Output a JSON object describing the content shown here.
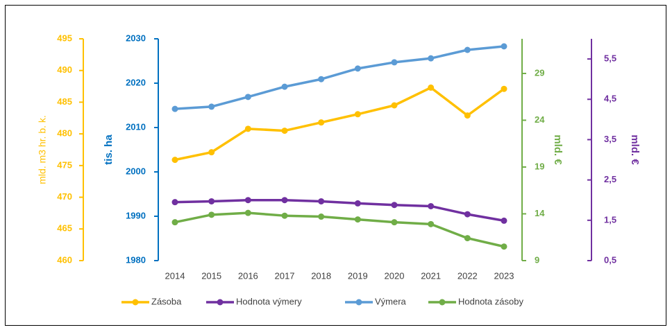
{
  "chart_data": {
    "type": "line",
    "categories": [
      "2014",
      "2015",
      "2016",
      "2017",
      "2018",
      "2019",
      "2020",
      "2021",
      "2022",
      "2023"
    ],
    "axes": [
      {
        "title": "mld. m3 hr. b. k.",
        "color": "#ffc000",
        "lim": [
          460,
          495
        ],
        "ticks": [
          460,
          465,
          470,
          475,
          480,
          485,
          490,
          495
        ]
      },
      {
        "title": "tis. ha",
        "color": "#0070c0",
        "lim": [
          1980,
          2030
        ],
        "ticks": [
          1980,
          1990,
          2000,
          2010,
          2020,
          2030
        ]
      },
      {
        "title": "mld. €",
        "color": "#70ad47",
        "lim": [
          9,
          32.7
        ],
        "ticks": [
          9,
          14,
          19,
          24,
          29
        ]
      },
      {
        "title": "mld. €",
        "color": "#7030a0",
        "lim": [
          0.5,
          6
        ],
        "ticks": [
          {
            "value": 0.5,
            "label": "0,5"
          },
          {
            "value": 1.5,
            "label": "1,5"
          },
          {
            "value": 2.5,
            "label": "2,5"
          },
          {
            "value": 3.5,
            "label": "3,5"
          },
          {
            "value": 4.5,
            "label": "4,5"
          },
          {
            "value": 5.5,
            "label": "5,5"
          }
        ]
      }
    ],
    "series": [
      {
        "name": "Zásoba",
        "color": "#ffc000",
        "axis": 0,
        "values": [
          475.9,
          477.1,
          480.8,
          480.5,
          481.8,
          483.1,
          484.5,
          487.3,
          482.9,
          487.1
        ]
      },
      {
        "name": "Hodnota výmery",
        "color": "#7030a0",
        "axis": 3,
        "values": [
          1.95,
          1.97,
          2.0,
          2.0,
          1.97,
          1.92,
          1.88,
          1.85,
          1.65,
          1.49
        ]
      },
      {
        "name": "Výmera",
        "color": "#5b9bd5",
        "axis": 1,
        "values": [
          2014.2,
          2014.7,
          2016.9,
          2019.2,
          2020.9,
          2023.3,
          2024.7,
          2025.6,
          2027.5,
          2028.3
        ]
      },
      {
        "name": "Hodnota zásoby",
        "color": "#70ad47",
        "axis": 2,
        "values": [
          13.1,
          13.9,
          14.1,
          13.8,
          13.7,
          13.4,
          13.1,
          12.9,
          11.4,
          10.5
        ]
      }
    ]
  }
}
